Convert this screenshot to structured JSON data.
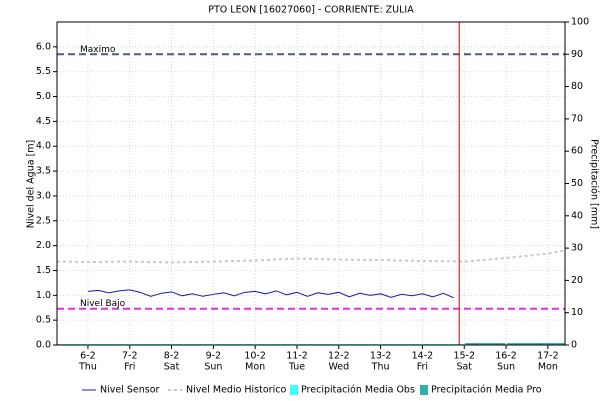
{
  "chart_data": {
    "type": "line",
    "title": "PTO LEON [16027060] - CORRIENTE: ZULIA",
    "ylabel": "Nivel del Agua [m]",
    "y2label": "Precipitación [mm]",
    "xlim": [
      5.26,
      17.41
    ],
    "xticks": [
      {
        "value": 6,
        "label": "6-2",
        "weekday": "Thu"
      },
      {
        "value": 7,
        "label": "7-2",
        "weekday": "Fri"
      },
      {
        "value": 8,
        "label": "8-2",
        "weekday": "Sat"
      },
      {
        "value": 9,
        "label": "9-2",
        "weekday": "Sun"
      },
      {
        "value": 10,
        "label": "10-2",
        "weekday": "Mon"
      },
      {
        "value": 11,
        "label": "11-2",
        "weekday": "Tue"
      },
      {
        "value": 12,
        "label": "12-2",
        "weekday": "Wed"
      },
      {
        "value": 13,
        "label": "13-2",
        "weekday": "Thu"
      },
      {
        "value": 14,
        "label": "14-2",
        "weekday": "Fri"
      },
      {
        "value": 15,
        "label": "15-2",
        "weekday": "Sat"
      },
      {
        "value": 16,
        "label": "16-2",
        "weekday": "Sun"
      },
      {
        "value": 17,
        "label": "17-2",
        "weekday": "Mon"
      }
    ],
    "ylim": [
      0,
      6.5
    ],
    "yticks": [
      {
        "value": 0,
        "label": "0.0"
      },
      {
        "value": 0.5,
        "label": "0.5"
      },
      {
        "value": 1,
        "label": "1.0"
      },
      {
        "value": 1.5,
        "label": "1.5"
      },
      {
        "value": 2,
        "label": "2.0"
      },
      {
        "value": 2.5,
        "label": "2.5"
      },
      {
        "value": 3,
        "label": "3.0"
      },
      {
        "value": 3.5,
        "label": "3.5"
      },
      {
        "value": 4,
        "label": "4.0"
      },
      {
        "value": 4.5,
        "label": "4.5"
      },
      {
        "value": 5,
        "label": "5.0"
      },
      {
        "value": 5.5,
        "label": "5.5"
      },
      {
        "value": 6,
        "label": "6.0"
      }
    ],
    "y2lim": [
      0,
      100
    ],
    "y2ticks": [
      0,
      10,
      20,
      30,
      40,
      50,
      60,
      70,
      80,
      90,
      100
    ],
    "grid": true,
    "series": [
      {
        "name": "Nivel Sensor",
        "color": "#1a1aa0",
        "style": "solid",
        "x": [
          6,
          6.25,
          6.5,
          6.75,
          7,
          7.25,
          7.5,
          7.75,
          8,
          8.25,
          8.5,
          8.75,
          9,
          9.25,
          9.5,
          9.75,
          10,
          10.25,
          10.5,
          10.75,
          11,
          11.25,
          11.5,
          11.75,
          12,
          12.25,
          12.5,
          12.75,
          13,
          13.25,
          13.5,
          13.75,
          14,
          14.25,
          14.5,
          14.75
        ],
        "values": [
          1.08,
          1.1,
          1.05,
          1.09,
          1.11,
          1.06,
          0.98,
          1.04,
          1.07,
          0.99,
          1.03,
          0.98,
          1.02,
          1.05,
          0.99,
          1.06,
          1.08,
          1.03,
          1.09,
          1.01,
          1.06,
          0.98,
          1.05,
          1.02,
          1.06,
          0.97,
          1.04,
          1.0,
          1.03,
          0.96,
          1.02,
          0.99,
          1.03,
          0.97,
          1.04,
          0.95
        ]
      },
      {
        "name": "Nivel Medio Historico",
        "color": "#c8c8c8",
        "style": "dashed",
        "x": [
          5.26,
          6,
          7,
          8,
          9,
          10,
          11,
          12,
          13,
          14,
          15,
          16,
          17,
          17.41
        ],
        "values": [
          1.68,
          1.67,
          1.68,
          1.66,
          1.68,
          1.7,
          1.74,
          1.72,
          1.71,
          1.69,
          1.68,
          1.75,
          1.84,
          1.9
        ]
      },
      {
        "name": "Precipitación Media Obs",
        "color": "#40ffff",
        "style": "bar",
        "axis": "y2",
        "x": [
          5.5,
          6.5,
          7.5,
          8.5,
          9.5,
          10.5,
          11.5,
          12.5,
          13.5,
          14.5
        ],
        "values": [
          0.3,
          0.3,
          0.3,
          0.3,
          0.3,
          0.3,
          0.3,
          0.3,
          0.3,
          0.3
        ]
      },
      {
        "name": "Precipitación Media Pro",
        "color": "#30b0a8",
        "style": "bar",
        "axis": "y2",
        "x": [
          15.5,
          16.5,
          17.2
        ],
        "values": [
          0.6,
          0.6,
          0.6
        ]
      }
    ],
    "thresholds": [
      {
        "name": "Maximo",
        "value": 5.85,
        "color": "#4a5a88"
      },
      {
        "name": "Nivel Bajo",
        "value": 0.73,
        "color": "#e030e0"
      }
    ],
    "now_line": {
      "x": 14.88,
      "color": "#e02020"
    }
  }
}
